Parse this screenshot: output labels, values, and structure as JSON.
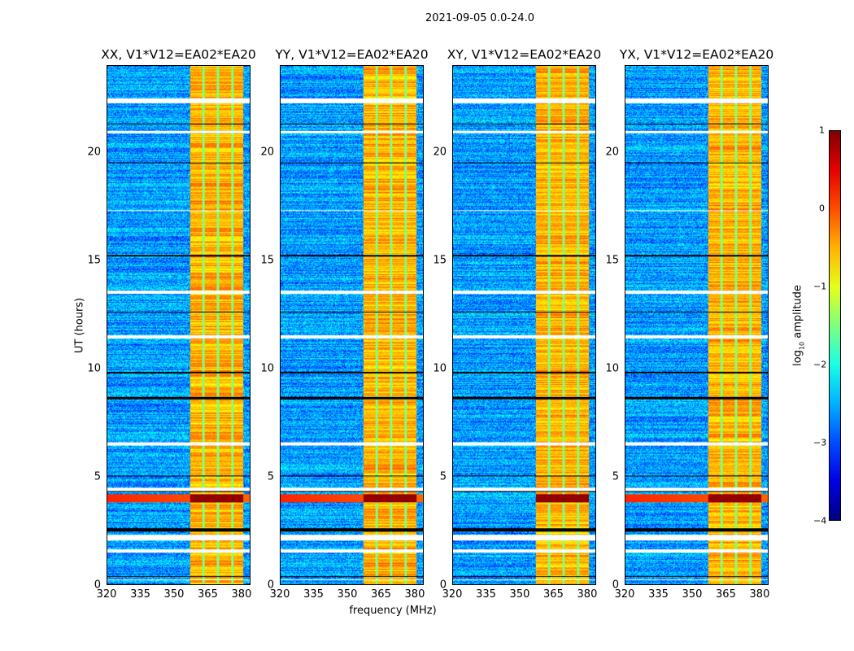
{
  "suptitle": "2021-09-05 0.0-24.0",
  "chart_data": {
    "type": "heatmap",
    "title": "2021-09-05 0.0-24.0",
    "xlabel": "frequency (MHz)",
    "ylabel": "UT (hours)",
    "xlim": [
      320,
      384
    ],
    "ylim": [
      0,
      24
    ],
    "xticks": [
      "320",
      "335",
      "350",
      "365",
      "380"
    ],
    "yticks": [
      "0",
      "5",
      "10",
      "15",
      "20"
    ],
    "panels": [
      {
        "title": "XX, V1*V12=EA02*EA20"
      },
      {
        "title": "YY, V1*V12=EA02*EA20"
      },
      {
        "title": "XY, V1*V12=EA02*EA20"
      },
      {
        "title": "YX, V1*V12=EA02*EA20"
      }
    ],
    "colorbar": {
      "label_main": "log",
      "label_sub": "10",
      "label_rest": " amplitude",
      "range": [
        -4,
        1
      ],
      "ticks": [
        "1",
        "0",
        "−1",
        "−2",
        "−3",
        "−4"
      ],
      "colormap": "jet"
    },
    "features": {
      "background_log_amp": -2.6,
      "rfi_band_MHz": [
        357,
        381
      ],
      "rfi_band_log_amp": -0.5,
      "strong_rfi_hours": [
        3.8,
        4.2
      ],
      "strong_rfi_log_amp": 0.9,
      "flagged_hours": [
        [
          0.2,
          0.25
        ],
        [
          1.5,
          1.65
        ],
        [
          2.05,
          2.3
        ],
        [
          4.35,
          4.5
        ],
        [
          6.45,
          6.6
        ],
        [
          11.4,
          11.55
        ],
        [
          13.45,
          13.6
        ],
        [
          22.3,
          22.5
        ],
        [
          17.3,
          17.35
        ],
        [
          20.9,
          21.0
        ]
      ],
      "blank_hours": [
        [
          2.45,
          2.6
        ],
        [
          4.3,
          4.35
        ],
        [
          8.6,
          8.7
        ],
        [
          9.8,
          9.85
        ],
        [
          12.6,
          12.65
        ],
        [
          15.2,
          15.25
        ],
        [
          19.5,
          19.55
        ],
        [
          21.3,
          21.35
        ],
        [
          0.35,
          0.38
        ],
        [
          5.0,
          5.05
        ]
      ]
    }
  }
}
